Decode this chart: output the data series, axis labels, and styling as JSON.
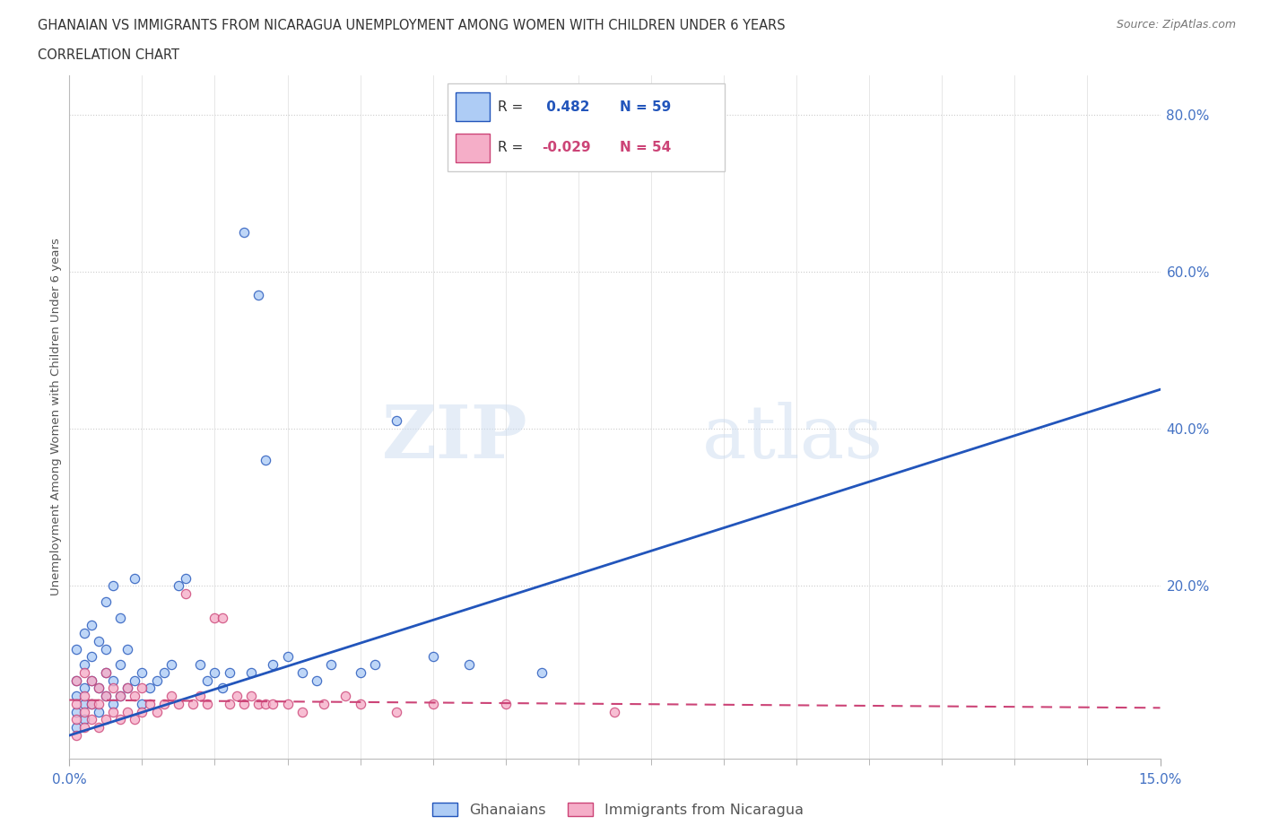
{
  "title_line1": "GHANAIAN VS IMMIGRANTS FROM NICARAGUA UNEMPLOYMENT AMONG WOMEN WITH CHILDREN UNDER 6 YEARS",
  "title_line2": "CORRELATION CHART",
  "source": "Source: ZipAtlas.com",
  "ylabel": "Unemployment Among Women with Children Under 6 years",
  "xlim": [
    0.0,
    0.15
  ],
  "ylim": [
    -0.02,
    0.85
  ],
  "yticks": [
    0.0,
    0.2,
    0.4,
    0.6,
    0.8
  ],
  "ytick_labels": [
    "",
    "20.0%",
    "40.0%",
    "60.0%",
    "80.0%"
  ],
  "blue_R": 0.482,
  "blue_N": 59,
  "pink_R": -0.029,
  "pink_N": 54,
  "blue_color": "#aeccf5",
  "pink_color": "#f5aec8",
  "blue_line_color": "#2255bb",
  "pink_line_color": "#cc4477",
  "watermark": "ZIPatlas",
  "legend_label_blue": "Ghanaians",
  "legend_label_pink": "Immigrants from Nicaragua",
  "blue_x": [
    0.001,
    0.001,
    0.001,
    0.001,
    0.001,
    0.002,
    0.002,
    0.002,
    0.002,
    0.002,
    0.003,
    0.003,
    0.003,
    0.003,
    0.004,
    0.004,
    0.004,
    0.005,
    0.005,
    0.005,
    0.005,
    0.006,
    0.006,
    0.006,
    0.007,
    0.007,
    0.007,
    0.008,
    0.008,
    0.009,
    0.009,
    0.01,
    0.01,
    0.011,
    0.012,
    0.013,
    0.014,
    0.015,
    0.016,
    0.018,
    0.019,
    0.02,
    0.021,
    0.022,
    0.024,
    0.025,
    0.026,
    0.027,
    0.028,
    0.03,
    0.032,
    0.034,
    0.036,
    0.04,
    0.042,
    0.045,
    0.05,
    0.055,
    0.065
  ],
  "blue_y": [
    0.02,
    0.04,
    0.06,
    0.08,
    0.12,
    0.03,
    0.05,
    0.07,
    0.1,
    0.14,
    0.05,
    0.08,
    0.11,
    0.15,
    0.04,
    0.07,
    0.13,
    0.06,
    0.09,
    0.12,
    0.18,
    0.05,
    0.08,
    0.2,
    0.06,
    0.1,
    0.16,
    0.07,
    0.12,
    0.08,
    0.21,
    0.05,
    0.09,
    0.07,
    0.08,
    0.09,
    0.1,
    0.2,
    0.21,
    0.1,
    0.08,
    0.09,
    0.07,
    0.09,
    0.65,
    0.09,
    0.57,
    0.36,
    0.1,
    0.11,
    0.09,
    0.08,
    0.1,
    0.09,
    0.1,
    0.41,
    0.11,
    0.1,
    0.09
  ],
  "pink_x": [
    0.001,
    0.001,
    0.001,
    0.001,
    0.002,
    0.002,
    0.002,
    0.002,
    0.003,
    0.003,
    0.003,
    0.004,
    0.004,
    0.004,
    0.005,
    0.005,
    0.005,
    0.006,
    0.006,
    0.007,
    0.007,
    0.008,
    0.008,
    0.009,
    0.009,
    0.01,
    0.01,
    0.011,
    0.012,
    0.013,
    0.014,
    0.015,
    0.016,
    0.017,
    0.018,
    0.019,
    0.02,
    0.021,
    0.022,
    0.023,
    0.024,
    0.025,
    0.026,
    0.027,
    0.028,
    0.03,
    0.032,
    0.035,
    0.038,
    0.04,
    0.045,
    0.05,
    0.06,
    0.075
  ],
  "pink_y": [
    0.01,
    0.03,
    0.05,
    0.08,
    0.02,
    0.04,
    0.06,
    0.09,
    0.03,
    0.05,
    0.08,
    0.02,
    0.05,
    0.07,
    0.03,
    0.06,
    0.09,
    0.04,
    0.07,
    0.03,
    0.06,
    0.04,
    0.07,
    0.03,
    0.06,
    0.04,
    0.07,
    0.05,
    0.04,
    0.05,
    0.06,
    0.05,
    0.19,
    0.05,
    0.06,
    0.05,
    0.16,
    0.16,
    0.05,
    0.06,
    0.05,
    0.06,
    0.05,
    0.05,
    0.05,
    0.05,
    0.04,
    0.05,
    0.06,
    0.05,
    0.04,
    0.05,
    0.05,
    0.04
  ]
}
